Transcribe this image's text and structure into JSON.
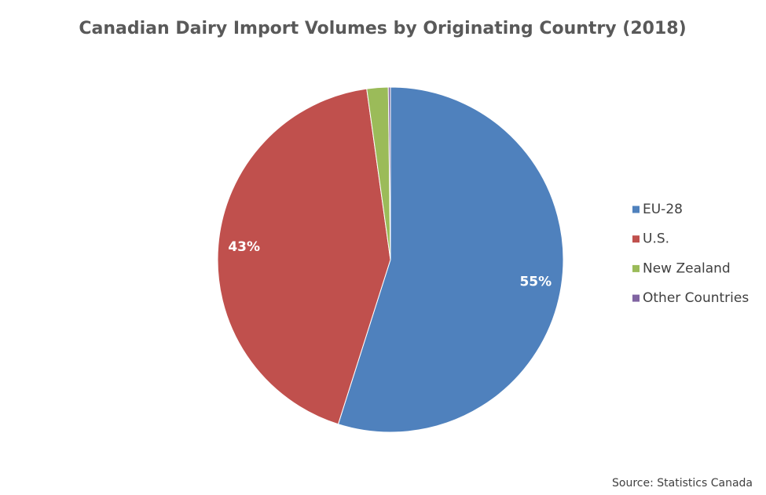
{
  "chart_data": {
    "type": "pie",
    "title": "Canadian Dairy Import Volumes by Originating Country (2018)",
    "categories": [
      "EU-28",
      "U.S.",
      "New Zealand",
      "Other Countries"
    ],
    "values": [
      55,
      43,
      2,
      0.2
    ],
    "value_labels": [
      "55%",
      "43%",
      null,
      null
    ],
    "colors": [
      "#4f81bd",
      "#c0504d",
      "#9bbb59",
      "#8064a2"
    ],
    "legend": "right",
    "source": "Source: Statistics Canada"
  }
}
